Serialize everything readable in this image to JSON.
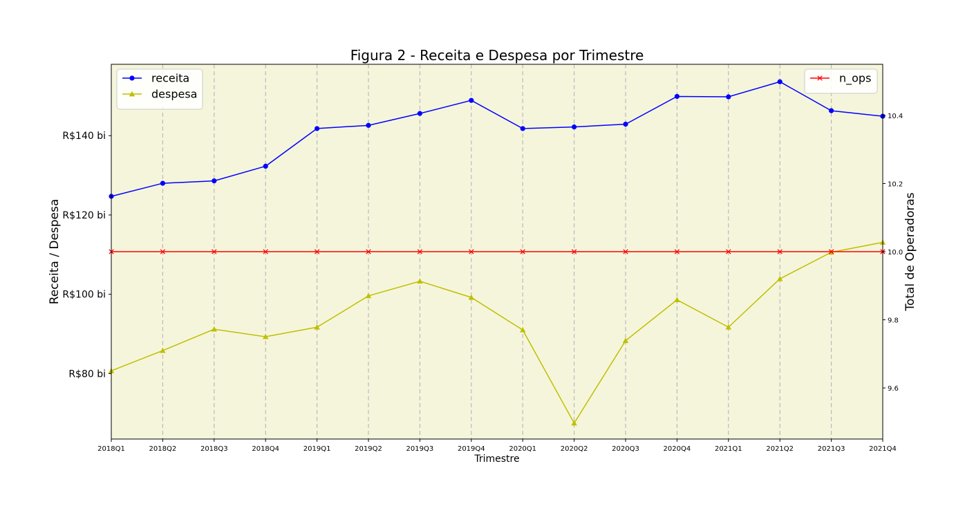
{
  "chart_data": {
    "type": "line",
    "title": "Figura 2 - Receita e Despesa por Trimestre",
    "xlabel": "Trimestre",
    "ylabel": "Receita / Despesa",
    "ylabel_right": "Total de Operadoras",
    "categories": [
      "2018Q1",
      "2018Q2",
      "2018Q3",
      "2018Q4",
      "2019Q1",
      "2019Q2",
      "2019Q3",
      "2019Q4",
      "2020Q1",
      "2020Q2",
      "2020Q3",
      "2020Q4",
      "2021Q1",
      "2021Q2",
      "2021Q3",
      "2021Q4"
    ],
    "ylim": [
      63.5,
      158
    ],
    "yticks": [
      80,
      100,
      120,
      140
    ],
    "ytick_labels": [
      "R$80 bi",
      "R$100 bi",
      "R$120 bi",
      "R$140 bi"
    ],
    "ylim_right": [
      9.45,
      10.55
    ],
    "yticks_right": [
      9.6,
      9.8,
      10.0,
      10.2,
      10.4
    ],
    "ytick_labels_right": [
      "9.6",
      "9.8",
      "10.0",
      "10.2",
      "10.4"
    ],
    "grid": "vertical dashed",
    "background": "#f5f5dc",
    "series": [
      {
        "name": "receita",
        "axis": "left",
        "color": "#0000ff",
        "marker": "circle",
        "values": [
          124.7,
          128.0,
          128.6,
          132.3,
          141.8,
          142.6,
          145.6,
          148.9,
          141.8,
          142.2,
          142.9,
          149.9,
          149.8,
          153.6,
          146.3,
          144.9
        ]
      },
      {
        "name": "despesa",
        "axis": "left",
        "color": "#bfbf00",
        "marker": "triangle",
        "values": [
          80.7,
          85.8,
          91.2,
          89.3,
          91.7,
          99.6,
          103.3,
          99.2,
          91.0,
          67.5,
          88.3,
          98.6,
          91.7,
          103.9,
          110.6,
          113.1
        ]
      },
      {
        "name": "n_ops",
        "axis": "right",
        "color": "#ff0000",
        "marker": "x",
        "values": [
          10,
          10,
          10,
          10,
          10,
          10,
          10,
          10,
          10,
          10,
          10,
          10,
          10,
          10,
          10,
          10
        ]
      }
    ],
    "legend_left": "top-left",
    "legend_right": "top-right"
  }
}
